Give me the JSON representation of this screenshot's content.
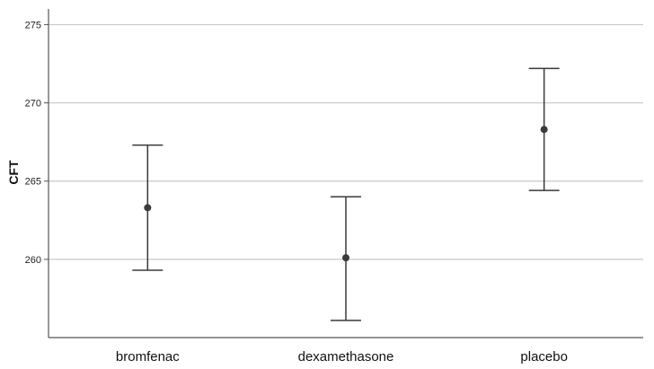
{
  "chart_data": {
    "type": "errorbar",
    "title": "",
    "xlabel": "",
    "ylabel": "CFT",
    "ylim": [
      255,
      276
    ],
    "yticks": [
      260,
      265,
      270,
      275
    ],
    "grid": true,
    "categories": [
      "bromfenac",
      "dexamethasone",
      "placebo"
    ],
    "series": [
      {
        "means": [
          263.3,
          260.1,
          268.3
        ],
        "lower": [
          259.3,
          256.1,
          264.4
        ],
        "upper": [
          267.3,
          264.0,
          272.2
        ]
      }
    ],
    "colors": {
      "grid": "#c8c8c8",
      "axis": "#555555",
      "marker": "#3a3a3a",
      "errorbar": "#3a3a3a"
    }
  }
}
